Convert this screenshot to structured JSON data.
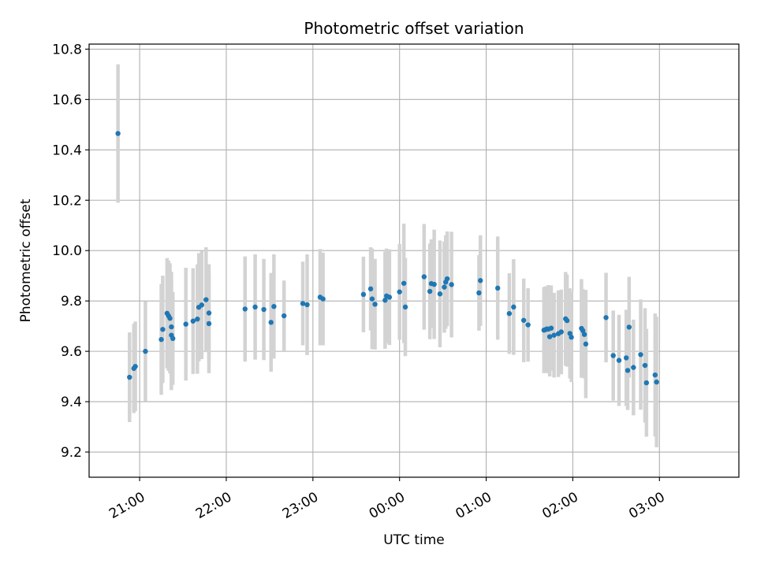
{
  "chart_data": {
    "type": "scatter",
    "title": "Photometric offset variation",
    "xlabel": "UTC time",
    "ylabel": "Photometric offset",
    "grid": true,
    "legend": "none",
    "x_axis_kind": "time",
    "xlim": [
      "20:25",
      "03:55"
    ],
    "ylim": [
      9.1,
      10.82
    ],
    "x_ticks": [
      "21:00",
      "22:00",
      "23:00",
      "00:00",
      "01:00",
      "02:00",
      "03:00"
    ],
    "y_ticks": [
      "9.2",
      "9.4",
      "9.6",
      "9.8",
      "10.0",
      "10.2",
      "10.4",
      "10.6",
      "10.8"
    ],
    "colors": {
      "marker": "#1f77b4",
      "errorbar": "#d3d3d3",
      "grid": "#b0b0b0"
    },
    "series": [
      {
        "x": [
          "20:45",
          "20:53",
          "20:56",
          "20:57",
          "21:04",
          "21:15",
          "21:16",
          "21:19",
          "21:20",
          "21:21",
          "21:22",
          "21:22",
          "21:23",
          "21:32",
          "21:37",
          "21:40",
          "21:41",
          "21:43",
          "21:46",
          "21:48",
          "21:48",
          "22:13",
          "22:20",
          "22:26",
          "22:31",
          "22:33",
          "22:40",
          "22:53",
          "22:56",
          "23:05",
          "23:07",
          "23:35",
          "23:40",
          "23:41",
          "23:43",
          "23:50",
          "23:51",
          "23:53",
          "24:00",
          "24:03",
          "24:04",
          "24:17",
          "24:21",
          "24:22",
          "24:24",
          "24:28",
          "24:31",
          "24:32",
          "24:33",
          "24:36",
          "24:55",
          "24:56",
          "25:08",
          "25:16",
          "25:19",
          "25:26",
          "25:29",
          "25:40",
          "25:41",
          "25:42",
          "25:43",
          "25:44",
          "25:45",
          "25:47",
          "25:50",
          "25:52",
          "25:55",
          "25:56",
          "25:58",
          "25:59",
          "26:06",
          "26:07",
          "26:08",
          "26:09",
          "26:23",
          "26:28",
          "26:32",
          "26:37",
          "26:38",
          "26:39",
          "26:42",
          "26:47",
          "26:50",
          "26:51",
          "26:57",
          "26:58"
        ],
        "y": [
          10.465,
          9.497,
          9.532,
          9.54,
          9.6,
          9.647,
          9.687,
          9.751,
          9.741,
          9.731,
          9.697,
          9.664,
          9.651,
          9.708,
          9.72,
          9.728,
          9.775,
          9.784,
          9.805,
          9.752,
          9.71,
          9.768,
          9.776,
          9.766,
          9.715,
          9.778,
          9.741,
          9.79,
          9.785,
          9.815,
          9.808,
          9.826,
          9.848,
          9.808,
          9.787,
          9.803,
          9.82,
          9.815,
          9.836,
          9.87,
          9.776,
          9.896,
          9.838,
          9.869,
          9.866,
          9.828,
          9.855,
          9.875,
          9.888,
          9.865,
          9.832,
          9.881,
          9.851,
          9.75,
          9.776,
          9.723,
          9.705,
          9.684,
          9.686,
          9.689,
          9.688,
          9.658,
          9.692,
          9.664,
          9.67,
          9.677,
          9.729,
          9.722,
          9.671,
          9.656,
          9.691,
          9.682,
          9.667,
          9.629,
          9.734,
          9.583,
          9.564,
          9.574,
          9.524,
          9.696,
          9.536,
          9.587,
          9.544,
          9.475,
          9.506,
          9.478
        ],
        "yerr": [
          0.275,
          0.178,
          0.177,
          0.178,
          0.199,
          0.22,
          0.213,
          0.219,
          0.219,
          0.219,
          0.219,
          0.218,
          0.184,
          0.224,
          0.21,
          0.217,
          0.215,
          0.215,
          0.208,
          0.194,
          0.197,
          0.209,
          0.209,
          0.201,
          0.196,
          0.207,
          0.14,
          0.166,
          0.2,
          0.191,
          0.184,
          0.15,
          0.165,
          0.2,
          0.18,
          0.193,
          0.188,
          0.19,
          0.19,
          0.237,
          0.195,
          0.21,
          0.19,
          0.176,
          0.217,
          0.212,
          0.181,
          0.186,
          0.188,
          0.21,
          0.15,
          0.18,
          0.205,
          0.16,
          0.19,
          0.166,
          0.146,
          0.171,
          0.172,
          0.169,
          0.175,
          0.158,
          0.17,
          0.168,
          0.172,
          0.168,
          0.186,
          0.183,
          0.179,
          0.178,
          0.196,
          0.165,
          0.174,
          0.215,
          0.178,
          0.179,
          0.181,
          0.191,
          0.157,
          0.2,
          0.19,
          0.219,
          0.227,
          0.214,
          0.244,
          0.259
        ]
      }
    ]
  }
}
